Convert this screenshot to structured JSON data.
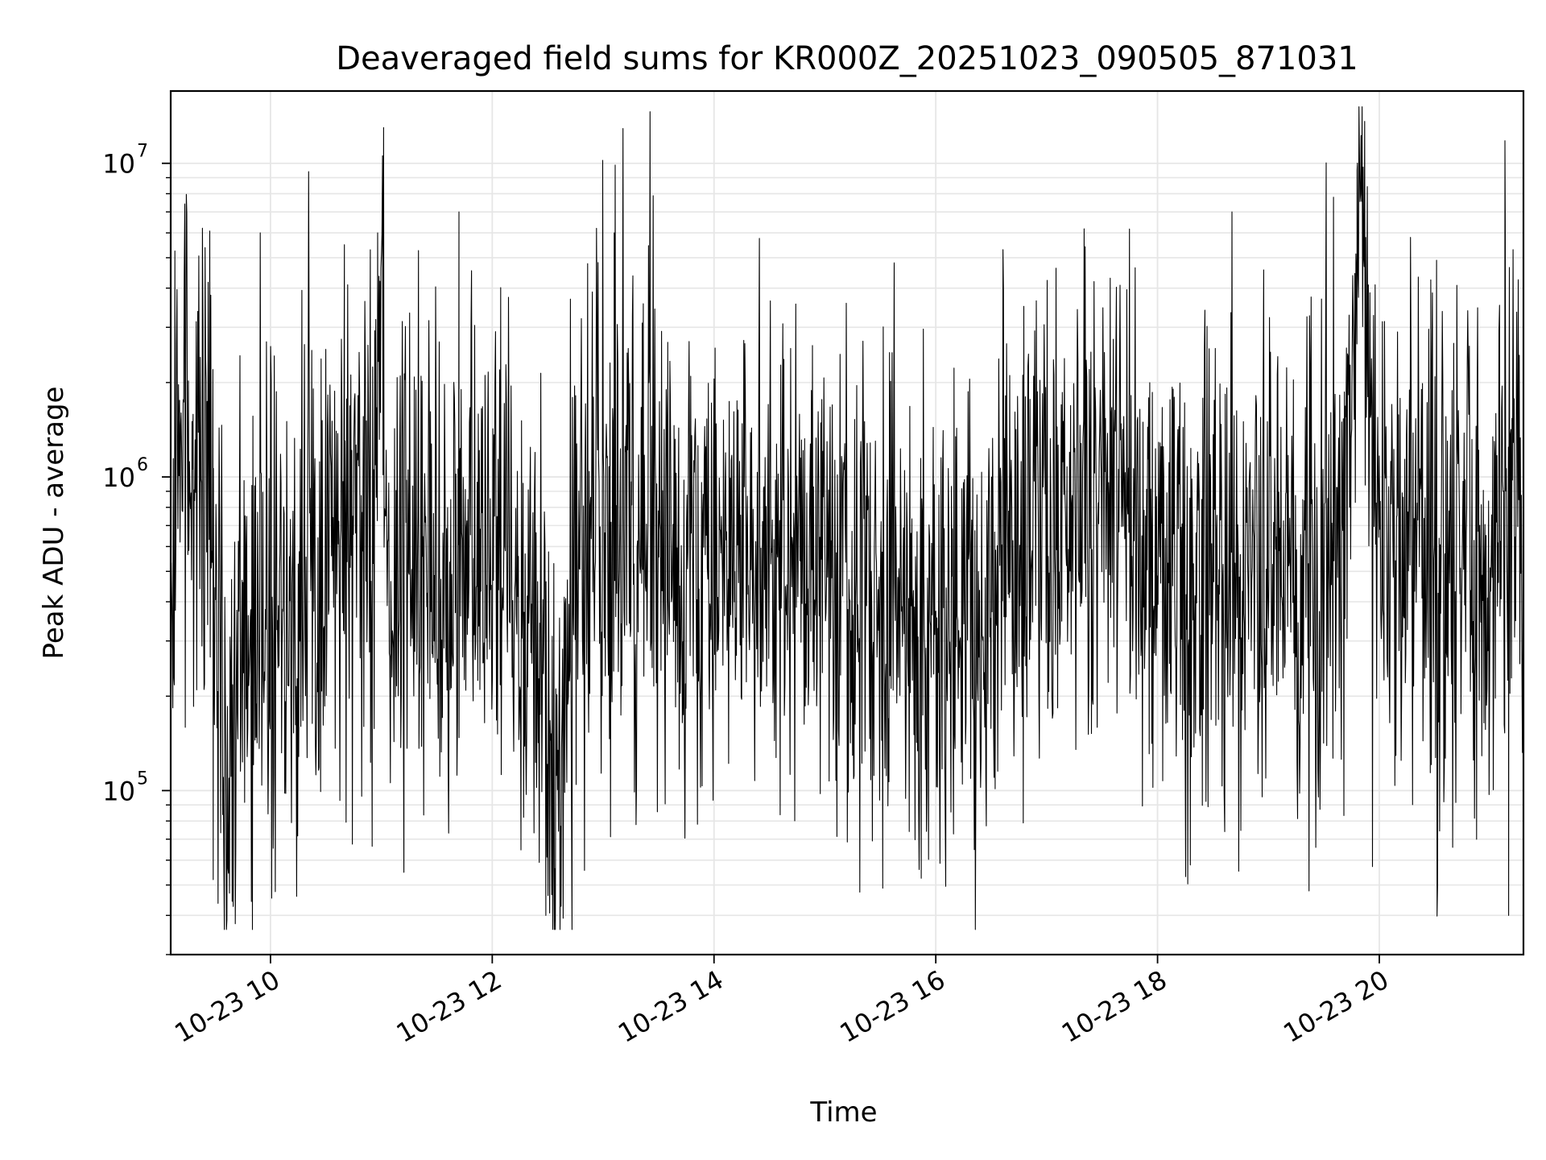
{
  "chart_data": {
    "type": "line",
    "title": "Deaveraged field sums for KR000Z_20251023_090505_871031",
    "xlabel": "Time",
    "ylabel": "Peak ADU - average",
    "yscale": "log",
    "xlim": [
      "2025-10-23 09:06",
      "2025-10-23 21:18"
    ],
    "ylim": [
      30000,
      17000000
    ],
    "grid": true,
    "x_ticks": [
      {
        "value": "2025-10-23 10:00",
        "label": "10-23 10"
      },
      {
        "value": "2025-10-23 12:00",
        "label": "10-23 12"
      },
      {
        "value": "2025-10-23 14:00",
        "label": "10-23 14"
      },
      {
        "value": "2025-10-23 16:00",
        "label": "10-23 16"
      },
      {
        "value": "2025-10-23 18:00",
        "label": "10-23 18"
      },
      {
        "value": "2025-10-23 20:00",
        "label": "10-23 20"
      }
    ],
    "y_ticks": [
      {
        "value": 100000,
        "base": "10",
        "exp": "5"
      },
      {
        "value": 1000000,
        "base": "10",
        "exp": "6"
      },
      {
        "value": 10000000,
        "base": "10",
        "exp": "7"
      }
    ],
    "series": [
      {
        "color": "#000000",
        "x": [
          "2025-10-23 09:06",
          "2025-10-23 09:10",
          "2025-10-23 09:16",
          "2025-10-23 09:22",
          "2025-10-23 09:28",
          "2025-10-23 09:32",
          "2025-10-23 09:36",
          "2025-10-23 09:38",
          "2025-10-23 09:44",
          "2025-10-23 09:50",
          "2025-10-23 09:56",
          "2025-10-23 10:06",
          "2025-10-23 10:18",
          "2025-10-23 10:24",
          "2025-10-23 10:30",
          "2025-10-23 10:40",
          "2025-10-23 10:46",
          "2025-10-23 10:56",
          "2025-10-23 11:00",
          "2025-10-23 11:02",
          "2025-10-23 11:06",
          "2025-10-23 11:20",
          "2025-10-23 11:30",
          "2025-10-23 11:40",
          "2025-10-23 11:46",
          "2025-10-23 11:54",
          "2025-10-23 12:10",
          "2025-10-23 12:20",
          "2025-10-23 12:25",
          "2025-10-23 12:30",
          "2025-10-23 12:36",
          "2025-10-23 12:40",
          "2025-10-23 12:44",
          "2025-10-23 12:52",
          "2025-10-23 13:00",
          "2025-10-23 13:06",
          "2025-10-23 13:20",
          "2025-10-23 13:40",
          "2025-10-23 14:00",
          "2025-10-23 14:20",
          "2025-10-23 14:40",
          "2025-10-23 15:00",
          "2025-10-23 15:20",
          "2025-10-23 15:40",
          "2025-10-23 16:00",
          "2025-10-23 16:20",
          "2025-10-23 16:40",
          "2025-10-23 17:00",
          "2025-10-23 17:20",
          "2025-10-23 17:40",
          "2025-10-23 18:00",
          "2025-10-23 18:20",
          "2025-10-23 18:40",
          "2025-10-23 19:00",
          "2025-10-23 19:20",
          "2025-10-23 19:40",
          "2025-10-23 19:50",
          "2025-10-23 20:00",
          "2025-10-23 20:20",
          "2025-10-23 20:40",
          "2025-10-23 21:00",
          "2025-10-23 21:06",
          "2025-10-23 21:12",
          "2025-10-23 21:18"
        ],
        "y": [
          380000,
          1500000,
          1300000,
          1200000,
          800000,
          400000,
          70000,
          120000,
          300000,
          300000,
          350000,
          400000,
          500000,
          550000,
          450000,
          500000,
          800000,
          500000,
          12500000,
          700000,
          400000,
          600000,
          550000,
          650000,
          700000,
          600000,
          500000,
          300000,
          350000,
          150000,
          80000,
          300000,
          500000,
          600000,
          700000,
          550000,
          600000,
          650000,
          600000,
          550000,
          600000,
          500000,
          450000,
          400000,
          300000,
          350000,
          500000,
          600000,
          700000,
          750000,
          500000,
          450000,
          400000,
          500000,
          450000,
          400000,
          9500000,
          550000,
          650000,
          500000,
          500000,
          800000,
          1000000,
          600000
        ],
        "spikes": [
          {
            "x": "2025-10-23 09:29",
            "y": 52000
          },
          {
            "x": "2025-10-23 10:40",
            "y": 5500000
          },
          {
            "x": "2025-10-23 10:54",
            "y": 5300000
          },
          {
            "x": "2025-10-23 10:58",
            "y": 6000000
          },
          {
            "x": "2025-10-23 11:42",
            "y": 7000000
          },
          {
            "x": "2025-10-23 12:29",
            "y": 40000
          },
          {
            "x": "2025-10-23 13:06",
            "y": 6000000
          },
          {
            "x": "2025-10-23 19:48",
            "y": 9500000
          },
          {
            "x": "2025-10-23 21:08",
            "y": 11800000
          },
          {
            "x": "2025-10-23 21:10",
            "y": 40000
          }
        ]
      }
    ]
  }
}
